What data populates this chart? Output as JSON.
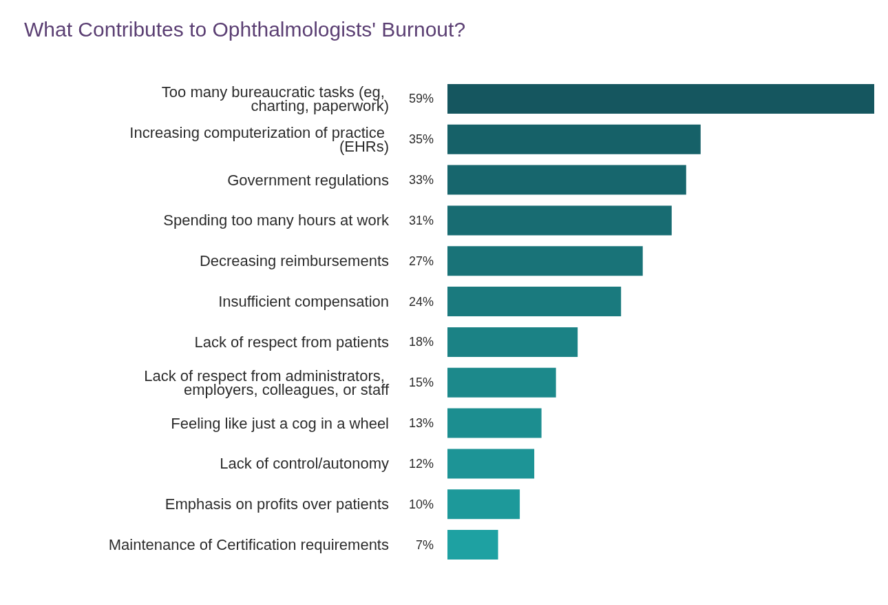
{
  "chart_data": {
    "type": "bar",
    "orientation": "horizontal",
    "title": "What Contributes to Ophthalmologists' Burnout?",
    "categories": [
      "Too many bureaucratic tasks (eg, charting, paperwork)",
      "Increasing computerization of practice (EHRs)",
      "Government regulations",
      "Spending too many hours at work",
      "Decreasing reimbursements",
      "Insufficient compensation",
      "Lack of respect from patients",
      "Lack of respect from administrators, employers, colleagues, or staff",
      "Feeling like just a cog in a wheel",
      "Lack of control/autonomy",
      "Emphasis on profits over patients",
      "Maintenance of Certification requirements"
    ],
    "values": [
      59,
      35,
      33,
      31,
      27,
      24,
      18,
      15,
      13,
      12,
      10,
      7
    ],
    "value_labels": [
      "59%",
      "35%",
      "33%",
      "31%",
      "27%",
      "24%",
      "18%",
      "15%",
      "13%",
      "12%",
      "10%",
      "7%"
    ],
    "colors": [
      "#15565f",
      "#166168",
      "#17666d",
      "#186c72",
      "#197378",
      "#1a7a7e",
      "#1b8285",
      "#1c898b",
      "#1c8e90",
      "#1d9496",
      "#1d999a",
      "#1ea1a2"
    ]
  }
}
